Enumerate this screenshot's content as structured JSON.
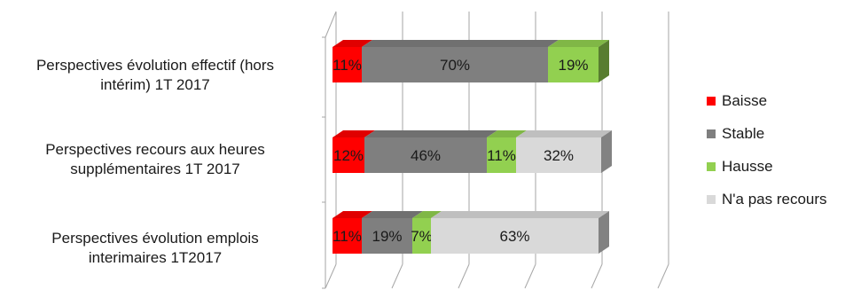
{
  "chart_data": {
    "type": "bar",
    "stacked": true,
    "orientation": "horizontal",
    "three_d": true,
    "categories": [
      "Perspectives évolution effectif (hors intérim) 1T 2017",
      "Perspectives recours aux heures supplémentaires 1T 2017",
      "Perspectives évolution emplois interimaires 1T2017"
    ],
    "category_lines": [
      [
        "Perspectives évolution effectif (hors",
        "intérim) 1T 2017"
      ],
      [
        "Perspectives recours aux heures",
        "supplémentaires 1T 2017"
      ],
      [
        "Perspectives évolution emplois",
        "interimaires 1T2017"
      ]
    ],
    "series": [
      {
        "name": "Baisse",
        "color": "#ff0000",
        "values": [
          11,
          12,
          11
        ],
        "labels": [
          "11%",
          "12%",
          "11%"
        ]
      },
      {
        "name": "Stable",
        "color": "#7f7f7f",
        "values": [
          70,
          46,
          19
        ],
        "labels": [
          "70%",
          "46%",
          "19%"
        ]
      },
      {
        "name": "Hausse",
        "color": "#92d050",
        "values": [
          19,
          11,
          7
        ],
        "labels": [
          "19%",
          "11%",
          "7%"
        ]
      },
      {
        "name": "N'a pas recours",
        "color": "#d9d9d9",
        "values": [
          0,
          32,
          63
        ],
        "labels": [
          "",
          "32%",
          "63%"
        ]
      }
    ],
    "xlim": [
      0,
      130
    ],
    "grid": true,
    "legend_position": "right",
    "title": "",
    "xlabel": "",
    "ylabel": ""
  }
}
